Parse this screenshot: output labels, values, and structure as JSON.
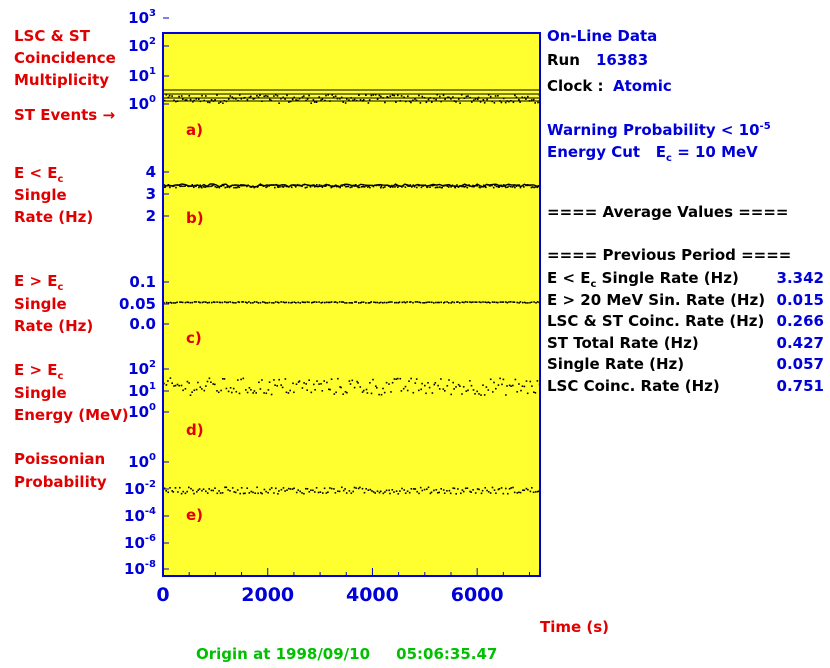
{
  "left_labels": {
    "a_title_1": "LSC & ST",
    "a_title_2": "Coincidence",
    "a_title_3": "Multiplicity",
    "st_events": "ST Events →",
    "b_title_1": "E < E",
    "b_title_sub": "c",
    "b_title_2": "Single",
    "b_title_3": "Rate (Hz)",
    "c_title_1": "E > E",
    "c_title_sub": "c",
    "c_title_2": "Single",
    "c_title_3": "Rate (Hz)",
    "d_title_1": "E > E",
    "d_title_sub": "c",
    "d_title_2": "Single",
    "d_title_3": "Energy (MeV)",
    "e_title_1": "Poissonian",
    "e_title_2": "Probability"
  },
  "right_panel": {
    "online": "On-Line Data",
    "run_label": "Run",
    "run_value": "16383",
    "clock_label": "Clock :",
    "clock_value": "Atomic",
    "warning_prefix": "Warning Probability < 10",
    "warning_exp": "-5",
    "energy_cut_prefix": "Energy Cut",
    "energy_cut_sym": "E",
    "energy_cut_sub": "c",
    "energy_cut_value": "= 10 MeV",
    "average_header": "==== Average Values ====",
    "previous_header": "==== Previous Period ====",
    "stats": [
      {
        "label": "E < E",
        "sub": "c",
        "label_rest": " Single Rate (Hz)",
        "value": "3.342"
      },
      {
        "label": "E > 20 MeV Sin. Rate (Hz)",
        "sub": "",
        "label_rest": "",
        "value": "0.015"
      },
      {
        "label": "LSC & ST Coinc. Rate (Hz)",
        "sub": "",
        "label_rest": "",
        "value": "0.266"
      },
      {
        "label": "ST Total Rate (Hz)",
        "sub": "",
        "label_rest": "",
        "value": "0.427"
      },
      {
        "label": "Single Rate (Hz)",
        "sub": "",
        "label_rest": "",
        "value": "0.057"
      },
      {
        "label": "LSC Coinc. Rate (Hz)",
        "sub": "",
        "label_rest": "",
        "value": "0.751"
      }
    ]
  },
  "footer": {
    "time_label": "Time (s)",
    "origin": "Origin at 1998/09/10     05:06:35.47"
  },
  "chart_data": {
    "type": "scatter",
    "xlabel": "Time (s)",
    "xlim": [
      0,
      7200
    ],
    "x_ticks": [
      "0",
      "2000",
      "4000",
      "6000"
    ],
    "x_tick_values": [
      0,
      2000,
      4000,
      6000
    ],
    "panels": [
      {
        "name": "a",
        "label": "a)",
        "scale": "log",
        "ticks": [
          {
            "b": "10",
            "e": "3"
          },
          {
            "b": "10",
            "e": "2"
          },
          {
            "b": "10",
            "e": "1"
          },
          {
            "b": "10",
            "e": "0"
          }
        ],
        "ylim": [
          1,
          1000
        ],
        "level": 1.6,
        "spread": 0.15
      },
      {
        "name": "b",
        "label": "b)",
        "scale": "linear",
        "ticks": [
          {
            "b": "4",
            "e": ""
          },
          {
            "b": "3",
            "e": ""
          },
          {
            "b": "2",
            "e": ""
          }
        ],
        "ylim": [
          1.3,
          4.5
        ],
        "level": 3.34,
        "spread": 0.1
      },
      {
        "name": "c",
        "label": "c)",
        "scale": "linear",
        "ticks": [
          {
            "b": "0.1",
            "e": ""
          },
          {
            "b": "0.05",
            "e": ""
          },
          {
            "b": "0.0",
            "e": ""
          }
        ],
        "ylim": [
          -0.03,
          0.12
        ],
        "level": 0.05,
        "spread": 0.002
      },
      {
        "name": "d",
        "label": "d)",
        "scale": "log",
        "ticks": [
          {
            "b": "10",
            "e": "2"
          },
          {
            "b": "10",
            "e": "1"
          },
          {
            "b": "10",
            "e": "0"
          }
        ],
        "ylim": [
          0.3,
          300
        ],
        "level": 20,
        "spread": 0.6
      },
      {
        "name": "e",
        "label": "e)",
        "scale": "log",
        "ticks": [
          {
            "b": "10",
            "e": "0"
          },
          {
            "b": "10",
            "e": "-2"
          },
          {
            "b": "10",
            "e": "-4"
          },
          {
            "b": "10",
            "e": "-6"
          },
          {
            "b": "10",
            "e": "-8"
          }
        ],
        "ylim": [
          1e-09,
          10
        ],
        "level": 0.02,
        "spread": 0.3
      }
    ],
    "colors": {
      "plot_bg": "#ffff30",
      "frame": "#0000d8",
      "points": "#000000",
      "panel_label": "#e00000"
    }
  }
}
